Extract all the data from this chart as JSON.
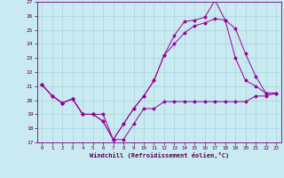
{
  "xlabel": "Windchill (Refroidissement éolien,°C)",
  "background_color": "#c8eaf0",
  "grid_color": "#aad4dc",
  "line_color": "#990099",
  "xlim": [
    -0.5,
    23.5
  ],
  "ylim": [
    17,
    27
  ],
  "xticks": [
    0,
    1,
    2,
    3,
    4,
    5,
    6,
    7,
    8,
    9,
    10,
    11,
    12,
    13,
    14,
    15,
    16,
    17,
    18,
    19,
    20,
    21,
    22,
    23
  ],
  "yticks": [
    17,
    18,
    19,
    20,
    21,
    22,
    23,
    24,
    25,
    26,
    27
  ],
  "series1_x": [
    0,
    1,
    2,
    3,
    4,
    5,
    6,
    7,
    8,
    9,
    10,
    11,
    12,
    13,
    14,
    15,
    16,
    17,
    18,
    19,
    20,
    21,
    22,
    23
  ],
  "series1_y": [
    21.1,
    20.3,
    19.8,
    20.1,
    19.0,
    19.0,
    19.0,
    17.2,
    17.2,
    18.3,
    19.4,
    19.4,
    19.9,
    19.9,
    19.9,
    19.9,
    19.9,
    19.9,
    19.9,
    19.9,
    19.9,
    20.3,
    20.3,
    20.5
  ],
  "series2_x": [
    0,
    1,
    2,
    3,
    4,
    5,
    6,
    7,
    8,
    9,
    10,
    11,
    12,
    13,
    14,
    15,
    16,
    17,
    18,
    19,
    20,
    21,
    22,
    23
  ],
  "series2_y": [
    21.1,
    20.3,
    19.8,
    20.1,
    19.0,
    19.0,
    18.5,
    17.2,
    18.3,
    19.4,
    20.3,
    21.4,
    23.2,
    24.6,
    25.6,
    25.7,
    25.9,
    27.1,
    25.7,
    25.1,
    23.3,
    21.7,
    20.5,
    20.5
  ],
  "series3_x": [
    0,
    1,
    2,
    3,
    4,
    5,
    6,
    7,
    8,
    9,
    10,
    11,
    12,
    13,
    14,
    15,
    16,
    17,
    18,
    19,
    20,
    21,
    22,
    23
  ],
  "series3_y": [
    21.1,
    20.3,
    19.8,
    20.1,
    19.0,
    19.0,
    18.5,
    17.2,
    18.3,
    19.4,
    20.3,
    21.4,
    23.2,
    24.0,
    24.8,
    25.3,
    25.5,
    25.8,
    25.7,
    23.0,
    21.4,
    21.0,
    20.5,
    20.5
  ]
}
